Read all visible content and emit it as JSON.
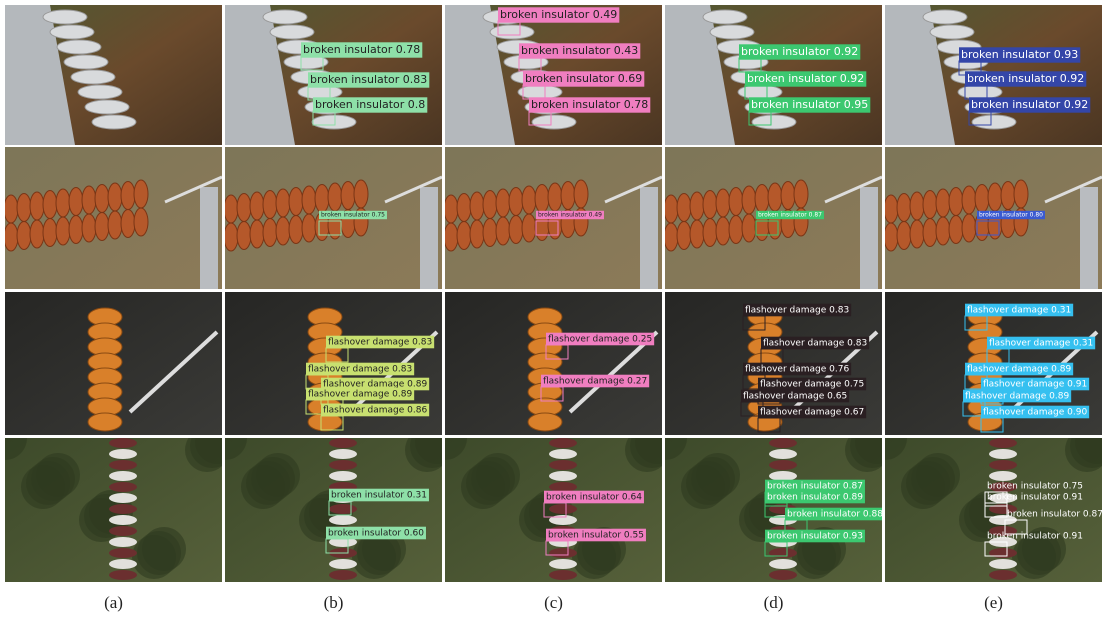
{
  "captions": [
    "(a)",
    "(b)",
    "(c)",
    "(d)",
    "(e)"
  ],
  "grid": [
    [
      [],
      [
        "broken insulator 0.78",
        "broken insulator 0.83",
        "broken insulator 0.8"
      ],
      [
        "broken insulator 0.49",
        "broken insulator 0.43",
        "broken insulator 0.69",
        "broken insulator 0.78"
      ],
      [
        "broken insulator 0.92",
        "broken insulator 0.92",
        "broken insulator 0.95"
      ],
      [
        "broken insulator 0.93",
        "broken insulator 0.92",
        "broken insulator 0.92"
      ]
    ],
    [
      [],
      [
        "broken insulator 0.75"
      ],
      [
        "broken insulator 0.49"
      ],
      [
        "broken insulator 0.87"
      ],
      [
        "broken insulator 0.80"
      ]
    ],
    [
      [],
      [
        "flashover damage 0.83",
        "flashover damage 0.83",
        "flashover damage 0.89",
        "flashover damage 0.89",
        "flashover damage 0.86"
      ],
      [
        "flashover damage 0.25",
        "flashover damage 0.27"
      ],
      [
        "flashover damage 0.83",
        "flashover damage 0.83",
        "flashover damage 0.76",
        "flashover damage 0.75",
        "flashover damage 0.65",
        "flashover damage 0.67"
      ],
      [
        "flashover damage 0.31",
        "flashover damage 0.31",
        "flashover damage 0.89",
        "flashover damage 0.91",
        "flashover damage 0.89",
        "flashover damage 0.90"
      ]
    ],
    [
      [],
      [
        "broken insulator 0.31",
        "broken insulator 0.60"
      ],
      [
        "broken insulator 0.64",
        "broken insulator 0.55"
      ],
      [
        "broken insulator 0.87",
        "broken insulator 0.89",
        "broken insulator 0.88",
        "broken insulator 0.93"
      ],
      [
        "broken insulator 0.75",
        "broken insulator 0.91",
        "broken insulator 0.87",
        "broken insulator 0.91"
      ]
    ]
  ]
}
